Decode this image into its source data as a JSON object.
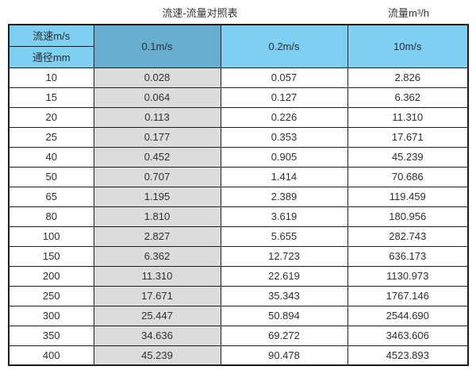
{
  "colors": {
    "header_light_blue": "#7ecff2",
    "header_dark_blue": "#68afcf",
    "column_gray": "#dcdcdc",
    "border": "#1d1d1d",
    "text": "#333333"
  },
  "chart_data": {
    "type": "table",
    "title": "流速-流量对照表",
    "unit_label": "流量m³/h",
    "header": {
      "corner_top": "流速m/s",
      "corner_bottom": "通径mm",
      "velocity_columns": [
        "0.1m/s",
        "0.2m/s",
        "10m/s"
      ]
    },
    "rows": [
      [
        "10",
        "0.028",
        "0.057",
        "2.826"
      ],
      [
        "15",
        "0.064",
        "0.127",
        "6.362"
      ],
      [
        "20",
        "0.113",
        "0.226",
        "11.310"
      ],
      [
        "25",
        "0.177",
        "0.353",
        "17.671"
      ],
      [
        "40",
        "0.452",
        "0.905",
        "45.239"
      ],
      [
        "50",
        "0.707",
        "1.414",
        "70.686"
      ],
      [
        "65",
        "1.195",
        "2.389",
        "119.459"
      ],
      [
        "80",
        "1.810",
        "3.619",
        "180.956"
      ],
      [
        "100",
        "2.827",
        "5.655",
        "282.743"
      ],
      [
        "150",
        "6.362",
        "12.723",
        "636.173"
      ],
      [
        "200",
        "11.310",
        "22.619",
        "1130.973"
      ],
      [
        "250",
        "17.671",
        "35.343",
        "1767.146"
      ],
      [
        "300",
        "25.447",
        "50.894",
        "2544.690"
      ],
      [
        "350",
        "34.636",
        "69.272",
        "3463.606"
      ],
      [
        "400",
        "45.239",
        "90.478",
        "4523.893"
      ]
    ]
  }
}
